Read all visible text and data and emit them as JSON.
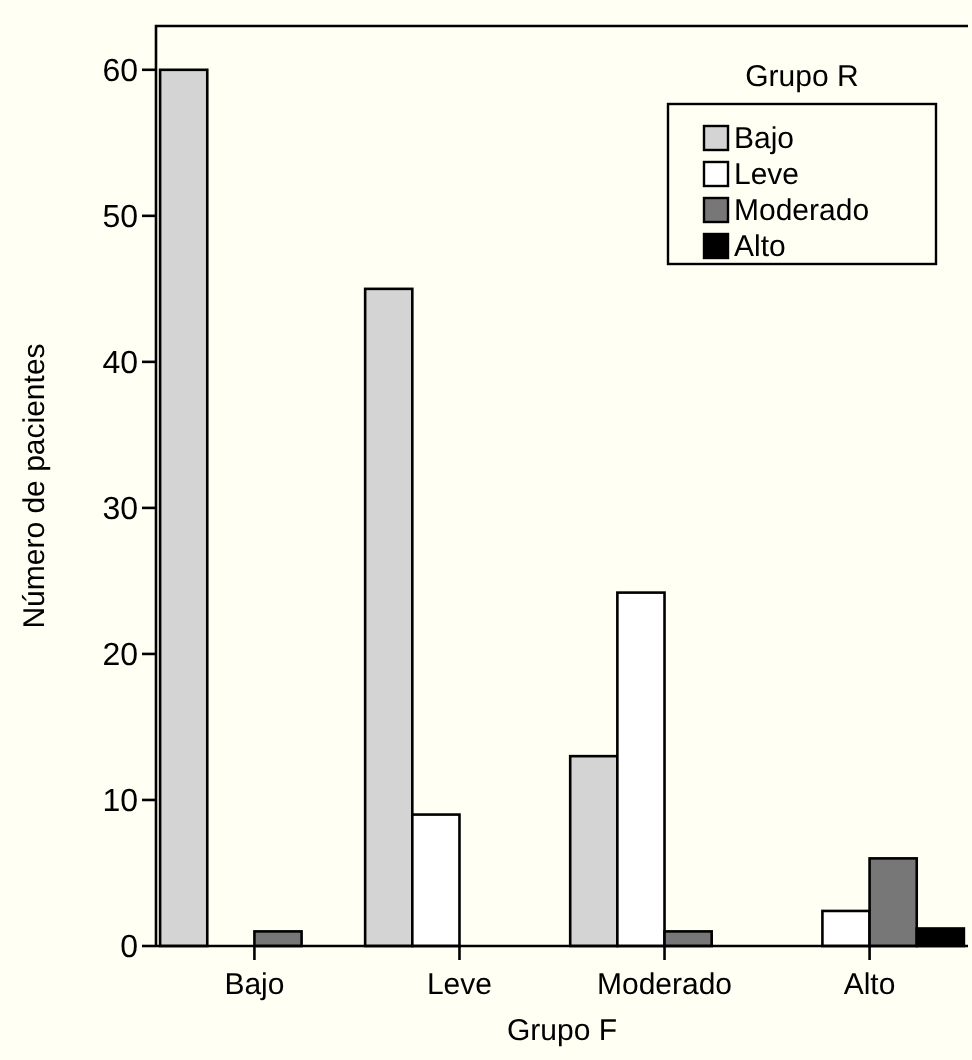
{
  "chart_data": {
    "type": "bar",
    "xlabel": "Grupo F",
    "ylabel": "Número de pacientes",
    "legend_title": "Grupo R",
    "categories": [
      "Bajo",
      "Leve",
      "Moderado",
      "Alto"
    ],
    "series": [
      {
        "name": "Bajo",
        "color": "#d4d4d4",
        "values": [
          60,
          45,
          13,
          0
        ]
      },
      {
        "name": "Leve",
        "color": "#ffffff",
        "values": [
          0,
          9,
          24.2,
          2.4
        ]
      },
      {
        "name": "Moderado",
        "color": "#777777",
        "values": [
          1,
          0,
          1,
          6
        ]
      },
      {
        "name": "Alto",
        "color": "#000000",
        "values": [
          0,
          0,
          0,
          1.2
        ]
      }
    ],
    "ylim": [
      0,
      63
    ],
    "yticks": [
      0,
      10,
      20,
      30,
      40,
      50,
      60
    ],
    "grid": false,
    "legend": "top right"
  }
}
